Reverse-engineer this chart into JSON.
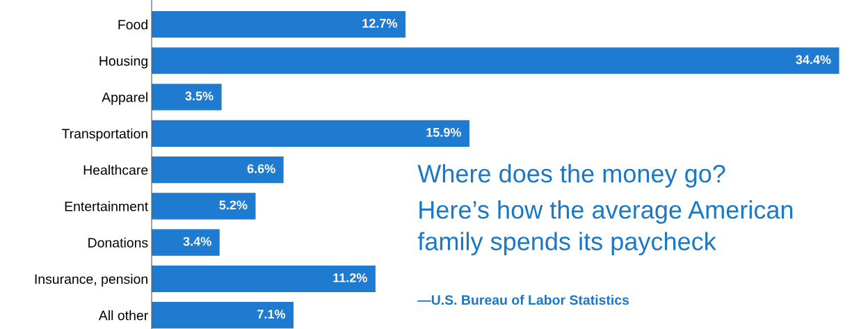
{
  "chart_data": {
    "type": "bar",
    "orientation": "horizontal",
    "title": "Where does the money go?",
    "subtitle": "Here’s how the average American family spends its paycheck",
    "categories": [
      "Food",
      "Housing",
      "Apparel",
      "Transportation",
      "Healthcare",
      "Entertainment",
      "Donations",
      "Insurance, pension",
      "All other"
    ],
    "values": [
      12.7,
      34.4,
      3.5,
      15.9,
      6.6,
      5.2,
      3.4,
      11.2,
      7.1
    ],
    "value_labels": [
      "12.7%",
      "34.4%",
      "3.5%",
      "15.9%",
      "6.6%",
      "5.2%",
      "3.4%",
      "11.2%",
      "7.1%"
    ],
    "color": "#1f7bcf",
    "tick_labels": "y",
    "grid": false,
    "legend": false,
    "annotations": [
      "—U.S. Bureau of Labor Statistics"
    ]
  }
}
